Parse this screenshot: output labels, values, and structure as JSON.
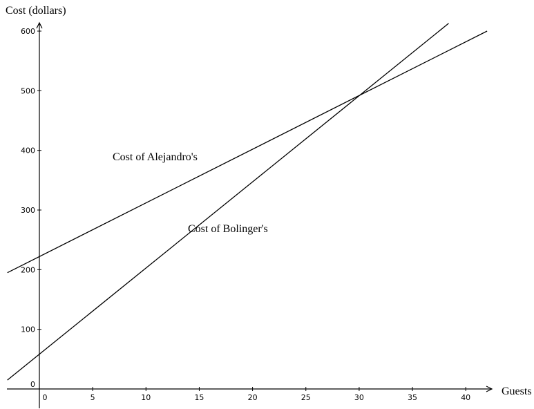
{
  "chart_data": {
    "type": "line",
    "xlabel": "Guests",
    "ylabel": "Cost (dollars)",
    "xlim": [
      -3,
      42
    ],
    "ylim": [
      0,
      600
    ],
    "x_ticks": [
      0,
      5,
      10,
      15,
      20,
      25,
      30,
      35,
      40
    ],
    "y_ticks": [
      0,
      100,
      200,
      300,
      400,
      500,
      600
    ],
    "grid": false,
    "series": [
      {
        "name": "Cost of Alejandro's",
        "x": [
          -3,
          42
        ],
        "y": [
          195,
          600
        ]
      },
      {
        "name": "Cost of Bolinger's",
        "x": [
          -3,
          38.4
        ],
        "y": [
          15,
          613
        ]
      }
    ]
  }
}
